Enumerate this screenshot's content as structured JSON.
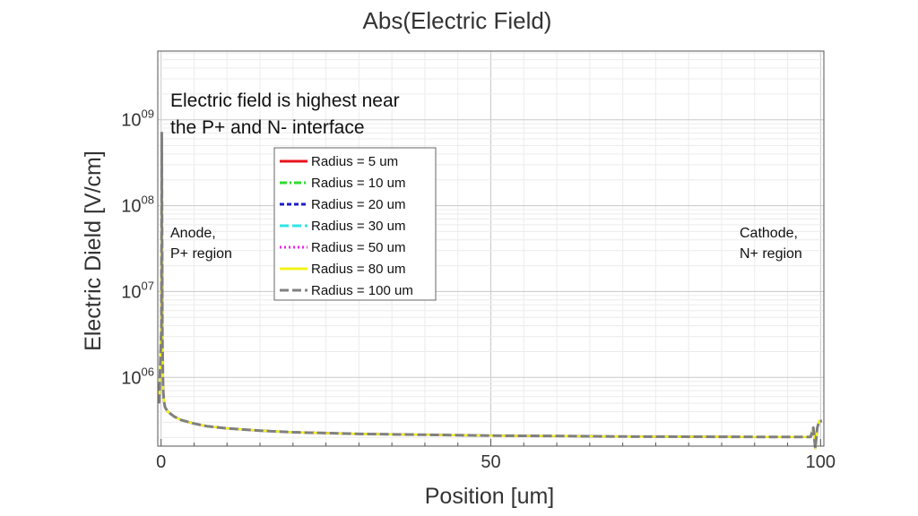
{
  "chart_data": {
    "type": "line",
    "title": "Abs(Electric Field)",
    "xlabel": "Position [um]",
    "ylabel": "Electric Dield [V/cm]",
    "xlim": [
      -0.5,
      100.5
    ],
    "ylim_log10": [
      5.2,
      9.8
    ],
    "y_scale": "log",
    "grid": true,
    "legend_position": "upper-left",
    "x_ticks": [
      0,
      50,
      100
    ],
    "x_tick_labels": [
      "0",
      "50",
      "100"
    ],
    "y_ticks": [
      {
        "base": "10",
        "exp": "06",
        "value": 1000000
      },
      {
        "base": "10",
        "exp": "07",
        "value": 10000000
      },
      {
        "base": "10",
        "exp": "08",
        "value": 100000000
      },
      {
        "base": "10",
        "exp": "09",
        "value": 1000000000
      }
    ],
    "annotations": {
      "main_line1": "Electric field is highest near",
      "main_line2": "the P+ and N- interface",
      "anode_line1": "Anode,",
      "anode_line2": "P+ region",
      "cathode_line1": "Cathode,",
      "cathode_line2": "N+ region"
    },
    "x": [
      -0.3,
      0.05,
      0.1,
      0.2,
      0.3,
      0.4,
      0.6,
      1,
      2,
      3,
      5,
      7,
      10,
      15,
      20,
      30,
      40,
      50,
      60,
      70,
      80,
      90,
      98.5,
      98.9,
      99.2,
      99.5,
      99.8,
      100.2
    ],
    "series": [
      {
        "name": "Radius = 5 um",
        "color": "#e8141e",
        "dash": "solid",
        "y": [
          500000,
          4000000,
          700000000,
          3000000,
          800000,
          550000,
          450000,
          400000,
          350000,
          320000,
          290000,
          270000,
          255000,
          240000,
          230000,
          220000,
          215000,
          210000,
          208000,
          205000,
          204000,
          203000,
          203000,
          260000,
          150000,
          260000,
          310000,
          310000
        ]
      },
      {
        "name": "Radius = 10 um",
        "color": "#2edc2e",
        "dash": "dashdot",
        "y": [
          500000,
          4000000,
          700000000,
          3000000,
          800000,
          550000,
          450000,
          400000,
          350000,
          320000,
          290000,
          270000,
          255000,
          240000,
          230000,
          220000,
          215000,
          210000,
          208000,
          205000,
          204000,
          203000,
          203000,
          260000,
          150000,
          260000,
          310000,
          310000
        ]
      },
      {
        "name": "Radius = 20 um",
        "color": "#1c1ccc",
        "dash": "shortdash",
        "y": [
          500000,
          4000000,
          700000000,
          3000000,
          800000,
          550000,
          450000,
          400000,
          350000,
          320000,
          290000,
          270000,
          255000,
          240000,
          230000,
          220000,
          215000,
          210000,
          208000,
          205000,
          204000,
          203000,
          203000,
          260000,
          150000,
          260000,
          310000,
          310000
        ]
      },
      {
        "name": "Radius = 30 um",
        "color": "#30e4e4",
        "dash": "longdash",
        "y": [
          500000,
          4000000,
          700000000,
          3000000,
          800000,
          550000,
          450000,
          400000,
          350000,
          320000,
          290000,
          270000,
          255000,
          240000,
          230000,
          220000,
          215000,
          210000,
          208000,
          205000,
          204000,
          203000,
          203000,
          260000,
          150000,
          260000,
          310000,
          310000
        ]
      },
      {
        "name": "Radius = 50 um",
        "color": "#ee22ee",
        "dash": "dotted",
        "y": [
          500000,
          4000000,
          700000000,
          3000000,
          800000,
          550000,
          450000,
          400000,
          350000,
          320000,
          290000,
          270000,
          255000,
          240000,
          230000,
          220000,
          215000,
          210000,
          208000,
          205000,
          204000,
          203000,
          203000,
          260000,
          150000,
          260000,
          310000,
          310000
        ]
      },
      {
        "name": "Radius = 80 um",
        "color": "#f2f21c",
        "dash": "solid",
        "y": [
          500000,
          4000000,
          700000000,
          3000000,
          800000,
          550000,
          450000,
          400000,
          350000,
          320000,
          290000,
          270000,
          255000,
          240000,
          230000,
          220000,
          215000,
          210000,
          208000,
          205000,
          204000,
          203000,
          203000,
          260000,
          150000,
          260000,
          310000,
          310000
        ]
      },
      {
        "name": "Radius = 100 um",
        "color": "#808080",
        "dash": "longdash",
        "y": [
          500000,
          4000000,
          700000000,
          3000000,
          800000,
          550000,
          450000,
          400000,
          350000,
          320000,
          290000,
          270000,
          255000,
          240000,
          230000,
          220000,
          215000,
          210000,
          208000,
          205000,
          204000,
          203000,
          203000,
          260000,
          150000,
          260000,
          310000,
          310000
        ]
      }
    ]
  }
}
